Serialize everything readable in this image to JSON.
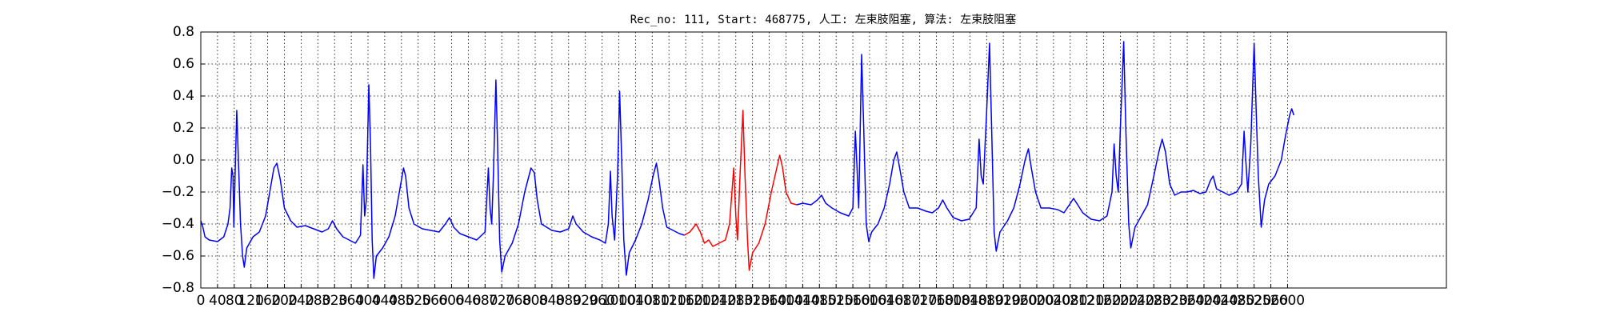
{
  "chart_data": {
    "type": "line",
    "title": "Rec_no: 111, Start: 468775, 人工: 左束肢阻塞, 算法: 左束肢阻塞",
    "xlim": [
      0,
      2980
    ],
    "ylim": [
      -0.8,
      0.8
    ],
    "xticks": [
      0,
      40,
      80,
      120,
      160,
      200,
      240,
      280,
      320,
      360,
      400,
      440,
      480,
      520,
      560,
      600,
      640,
      680,
      720,
      760,
      800,
      840,
      880,
      920,
      960,
      1000,
      1040,
      1080,
      1120,
      1160,
      1200,
      1240,
      1280,
      1320,
      1360,
      1400,
      1440,
      1480,
      1520,
      1560,
      1600,
      1640,
      1680,
      1720,
      1760,
      1800,
      1840,
      1880,
      1920,
      1960,
      2000,
      2040,
      2080,
      2120,
      2160,
      2200,
      2240,
      2280,
      2320,
      2360,
      2400,
      2440,
      2480,
      2520,
      2560,
      2600
    ],
    "yticks": [
      {
        "value": -0.8,
        "label": "−0.8"
      },
      {
        "value": -0.6,
        "label": "−0.6"
      },
      {
        "value": -0.4,
        "label": "−0.4"
      },
      {
        "value": -0.2,
        "label": "−0.2"
      },
      {
        "value": 0,
        "label": "0.0"
      },
      0.2,
      0.4,
      0.6,
      0.8
    ],
    "grid": true,
    "series": [
      {
        "color": "#0000ff",
        "x": [
          0,
          5,
          10,
          20,
          40,
          55,
          65,
          70,
          74,
          77,
          79,
          82,
          86,
          90,
          95,
          100,
          104,
          110,
          125,
          140,
          155,
          165,
          175,
          182,
          190,
          200,
          215,
          230,
          250,
          270,
          290,
          305,
          315,
          325,
          340,
          355,
          370,
          382,
          388,
          392,
          396,
          402,
          406,
          410,
          414,
          420,
          435,
          450,
          465,
          475,
          485,
          490,
          498,
          510,
          530,
          550,
          570,
          585,
          595,
          605,
          620,
          640,
          660,
          680,
          688,
          692,
          696,
          700,
          706,
          710,
          715,
          720,
          728,
          745,
          760,
          775,
          790,
          798,
          805,
          815,
          840,
          860,
          880,
          890,
          898,
          915,
          935,
          955,
          968,
          975,
          980,
          984,
          990,
          997,
          1002,
          1007,
          1012,
          1018,
          1025,
          1040,
          1055,
          1070,
          1082,
          1090,
          1095,
          1105,
          1115,
          1130,
          1145,
          1157
        ],
        "values": [
          -0.38,
          -0.42,
          -0.48,
          -0.5,
          -0.51,
          -0.48,
          -0.4,
          -0.3,
          -0.05,
          -0.1,
          -0.42,
          -0.1,
          0.31,
          0.0,
          -0.4,
          -0.6,
          -0.67,
          -0.55,
          -0.48,
          -0.45,
          -0.35,
          -0.2,
          -0.05,
          -0.02,
          -0.12,
          -0.3,
          -0.38,
          -0.42,
          -0.41,
          -0.43,
          -0.45,
          -0.43,
          -0.38,
          -0.43,
          -0.48,
          -0.5,
          -0.52,
          -0.47,
          -0.03,
          -0.35,
          -0.25,
          0.47,
          0.1,
          -0.5,
          -0.74,
          -0.6,
          -0.55,
          -0.48,
          -0.35,
          -0.2,
          -0.05,
          -0.1,
          -0.3,
          -0.4,
          -0.43,
          -0.44,
          -0.45,
          -0.4,
          -0.36,
          -0.42,
          -0.46,
          -0.48,
          -0.5,
          -0.45,
          -0.05,
          -0.3,
          -0.4,
          -0.1,
          0.5,
          0.1,
          -0.5,
          -0.7,
          -0.6,
          -0.52,
          -0.4,
          -0.2,
          -0.05,
          -0.08,
          -0.25,
          -0.4,
          -0.44,
          -0.45,
          -0.43,
          -0.35,
          -0.4,
          -0.45,
          -0.48,
          -0.5,
          -0.52,
          -0.4,
          -0.07,
          -0.35,
          -0.5,
          -0.1,
          0.43,
          0.0,
          -0.5,
          -0.72,
          -0.58,
          -0.5,
          -0.4,
          -0.25,
          -0.1,
          -0.02,
          -0.1,
          -0.3,
          -0.42,
          -0.44,
          -0.46,
          -0.47
        ]
      },
      {
        "color": "#ff0000",
        "x": [
          1157,
          1170,
          1185,
          1195,
          1205,
          1215,
          1225,
          1240,
          1255,
          1265,
          1275,
          1280,
          1284,
          1290,
          1297,
          1302,
          1308,
          1312,
          1320,
          1335,
          1350,
          1365,
          1378,
          1385,
          1392,
          1400,
          1412,
          1426
        ],
        "values": [
          -0.47,
          -0.45,
          -0.4,
          -0.45,
          -0.52,
          -0.5,
          -0.54,
          -0.52,
          -0.5,
          -0.4,
          -0.05,
          -0.35,
          -0.5,
          -0.1,
          0.31,
          -0.1,
          -0.5,
          -0.69,
          -0.58,
          -0.52,
          -0.4,
          -0.2,
          -0.05,
          0.03,
          -0.05,
          -0.2,
          -0.27,
          -0.28
        ]
      },
      {
        "color": "#0000ff",
        "x": [
          1426,
          1440,
          1460,
          1475,
          1485,
          1495,
          1510,
          1530,
          1550,
          1560,
          1566,
          1570,
          1574,
          1581,
          1586,
          1592,
          1598,
          1605,
          1620,
          1635,
          1648,
          1658,
          1665,
          1672,
          1682,
          1695,
          1715,
          1735,
          1750,
          1765,
          1775,
          1785,
          1800,
          1820,
          1838,
          1855,
          1862,
          1867,
          1872,
          1880,
          1887,
          1892,
          1898,
          1903,
          1912,
          1930,
          1945,
          1960,
          1972,
          1980,
          1987,
          1997,
          2010,
          2030,
          2050,
          2065,
          2078,
          2088,
          2098,
          2110,
          2130,
          2150,
          2168,
          2180,
          2185,
          2190,
          2195,
          2200,
          2208,
          2213,
          2220,
          2225,
          2235,
          2250,
          2265,
          2280,
          2292,
          2300,
          2308,
          2318,
          2330,
          2345,
          2360,
          2375,
          2390,
          2405,
          2415,
          2422,
          2430,
          2445,
          2460,
          2478,
          2490,
          2496,
          2500,
          2505,
          2512,
          2520,
          2525,
          2530,
          2537,
          2545,
          2555,
          2570,
          2585,
          2595,
          2605,
          2610,
          2615
        ],
        "values": [
          -0.28,
          -0.27,
          -0.28,
          -0.25,
          -0.22,
          -0.27,
          -0.3,
          -0.33,
          -0.35,
          -0.3,
          0.18,
          -0.05,
          -0.3,
          0.66,
          0.2,
          -0.4,
          -0.51,
          -0.45,
          -0.4,
          -0.3,
          -0.15,
          0.0,
          0.05,
          -0.05,
          -0.2,
          -0.3,
          -0.3,
          -0.32,
          -0.33,
          -0.3,
          -0.25,
          -0.3,
          -0.36,
          -0.38,
          -0.37,
          -0.3,
          0.13,
          -0.1,
          -0.15,
          0.3,
          0.73,
          0.2,
          -0.45,
          -0.57,
          -0.45,
          -0.38,
          -0.3,
          -0.15,
          0.0,
          0.07,
          -0.05,
          -0.2,
          -0.3,
          -0.3,
          -0.31,
          -0.33,
          -0.28,
          -0.24,
          -0.28,
          -0.33,
          -0.37,
          -0.38,
          -0.35,
          -0.2,
          0.1,
          -0.1,
          -0.2,
          0.2,
          0.74,
          0.2,
          -0.4,
          -0.55,
          -0.42,
          -0.35,
          -0.28,
          -0.1,
          0.05,
          0.13,
          0.05,
          -0.15,
          -0.22,
          -0.2,
          -0.2,
          -0.19,
          -0.21,
          -0.2,
          -0.13,
          -0.1,
          -0.18,
          -0.2,
          -0.22,
          -0.2,
          -0.15,
          0.18,
          0.0,
          -0.2,
          0.1,
          0.73,
          0.3,
          -0.1,
          -0.42,
          -0.25,
          -0.15,
          -0.1,
          0.0,
          0.15,
          0.28,
          0.32,
          0.28
        ]
      }
    ]
  }
}
